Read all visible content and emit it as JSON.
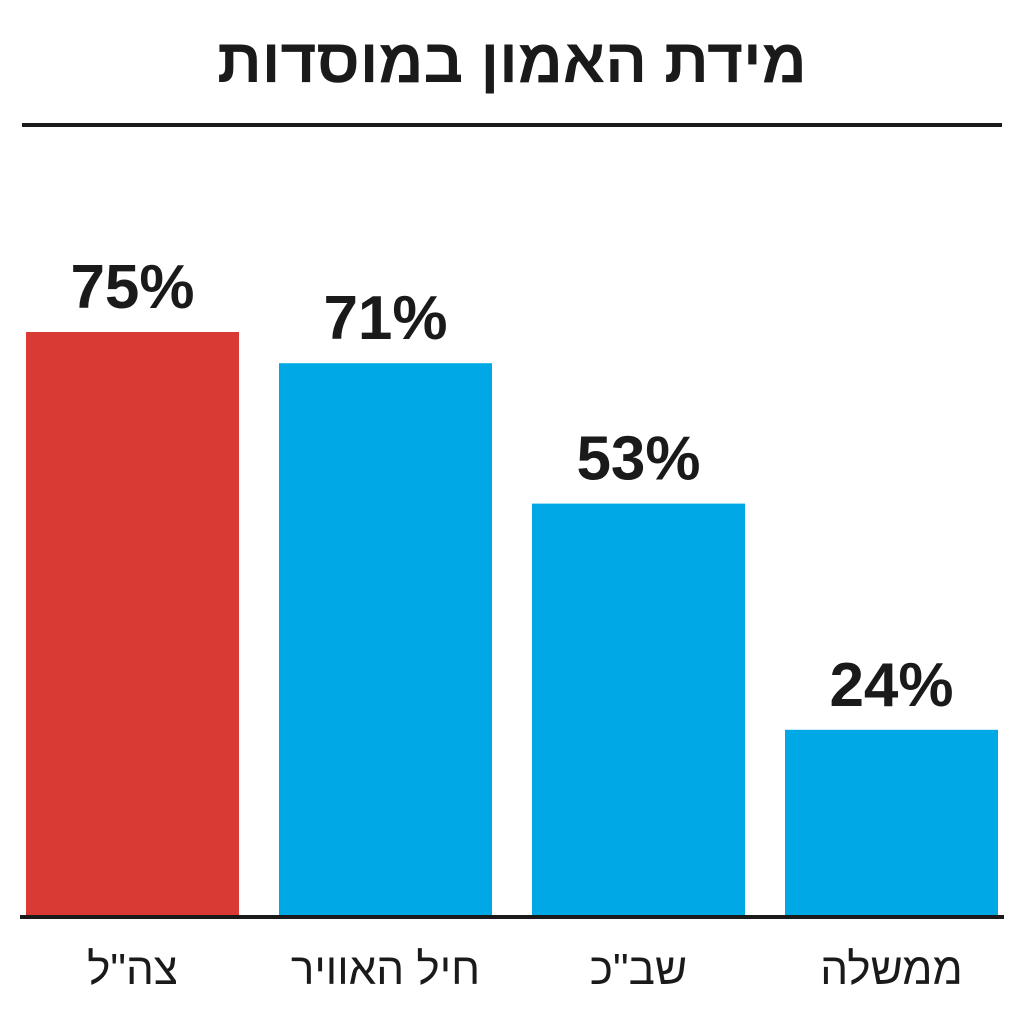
{
  "chart_data": {
    "type": "bar",
    "title": "מידת האמון במוסדות",
    "categories": [
      "צה\"ל",
      "חיל האוויר",
      "שב\"כ",
      "ממשלה"
    ],
    "values": [
      75,
      71,
      53,
      24
    ],
    "value_labels": [
      "75%",
      "71%",
      "53%",
      "24%"
    ],
    "bar_colors": [
      "#d93a33",
      "#00a9e6",
      "#00a9e6",
      "#00a9e6"
    ],
    "unit": "%",
    "ylim": [
      0,
      100
    ],
    "grid": false,
    "legend": "none"
  },
  "colors": {
    "highlight": "#d93a33",
    "bars": "#00a9e6",
    "text": "#1a1a1a",
    "background": "#ffffff"
  }
}
